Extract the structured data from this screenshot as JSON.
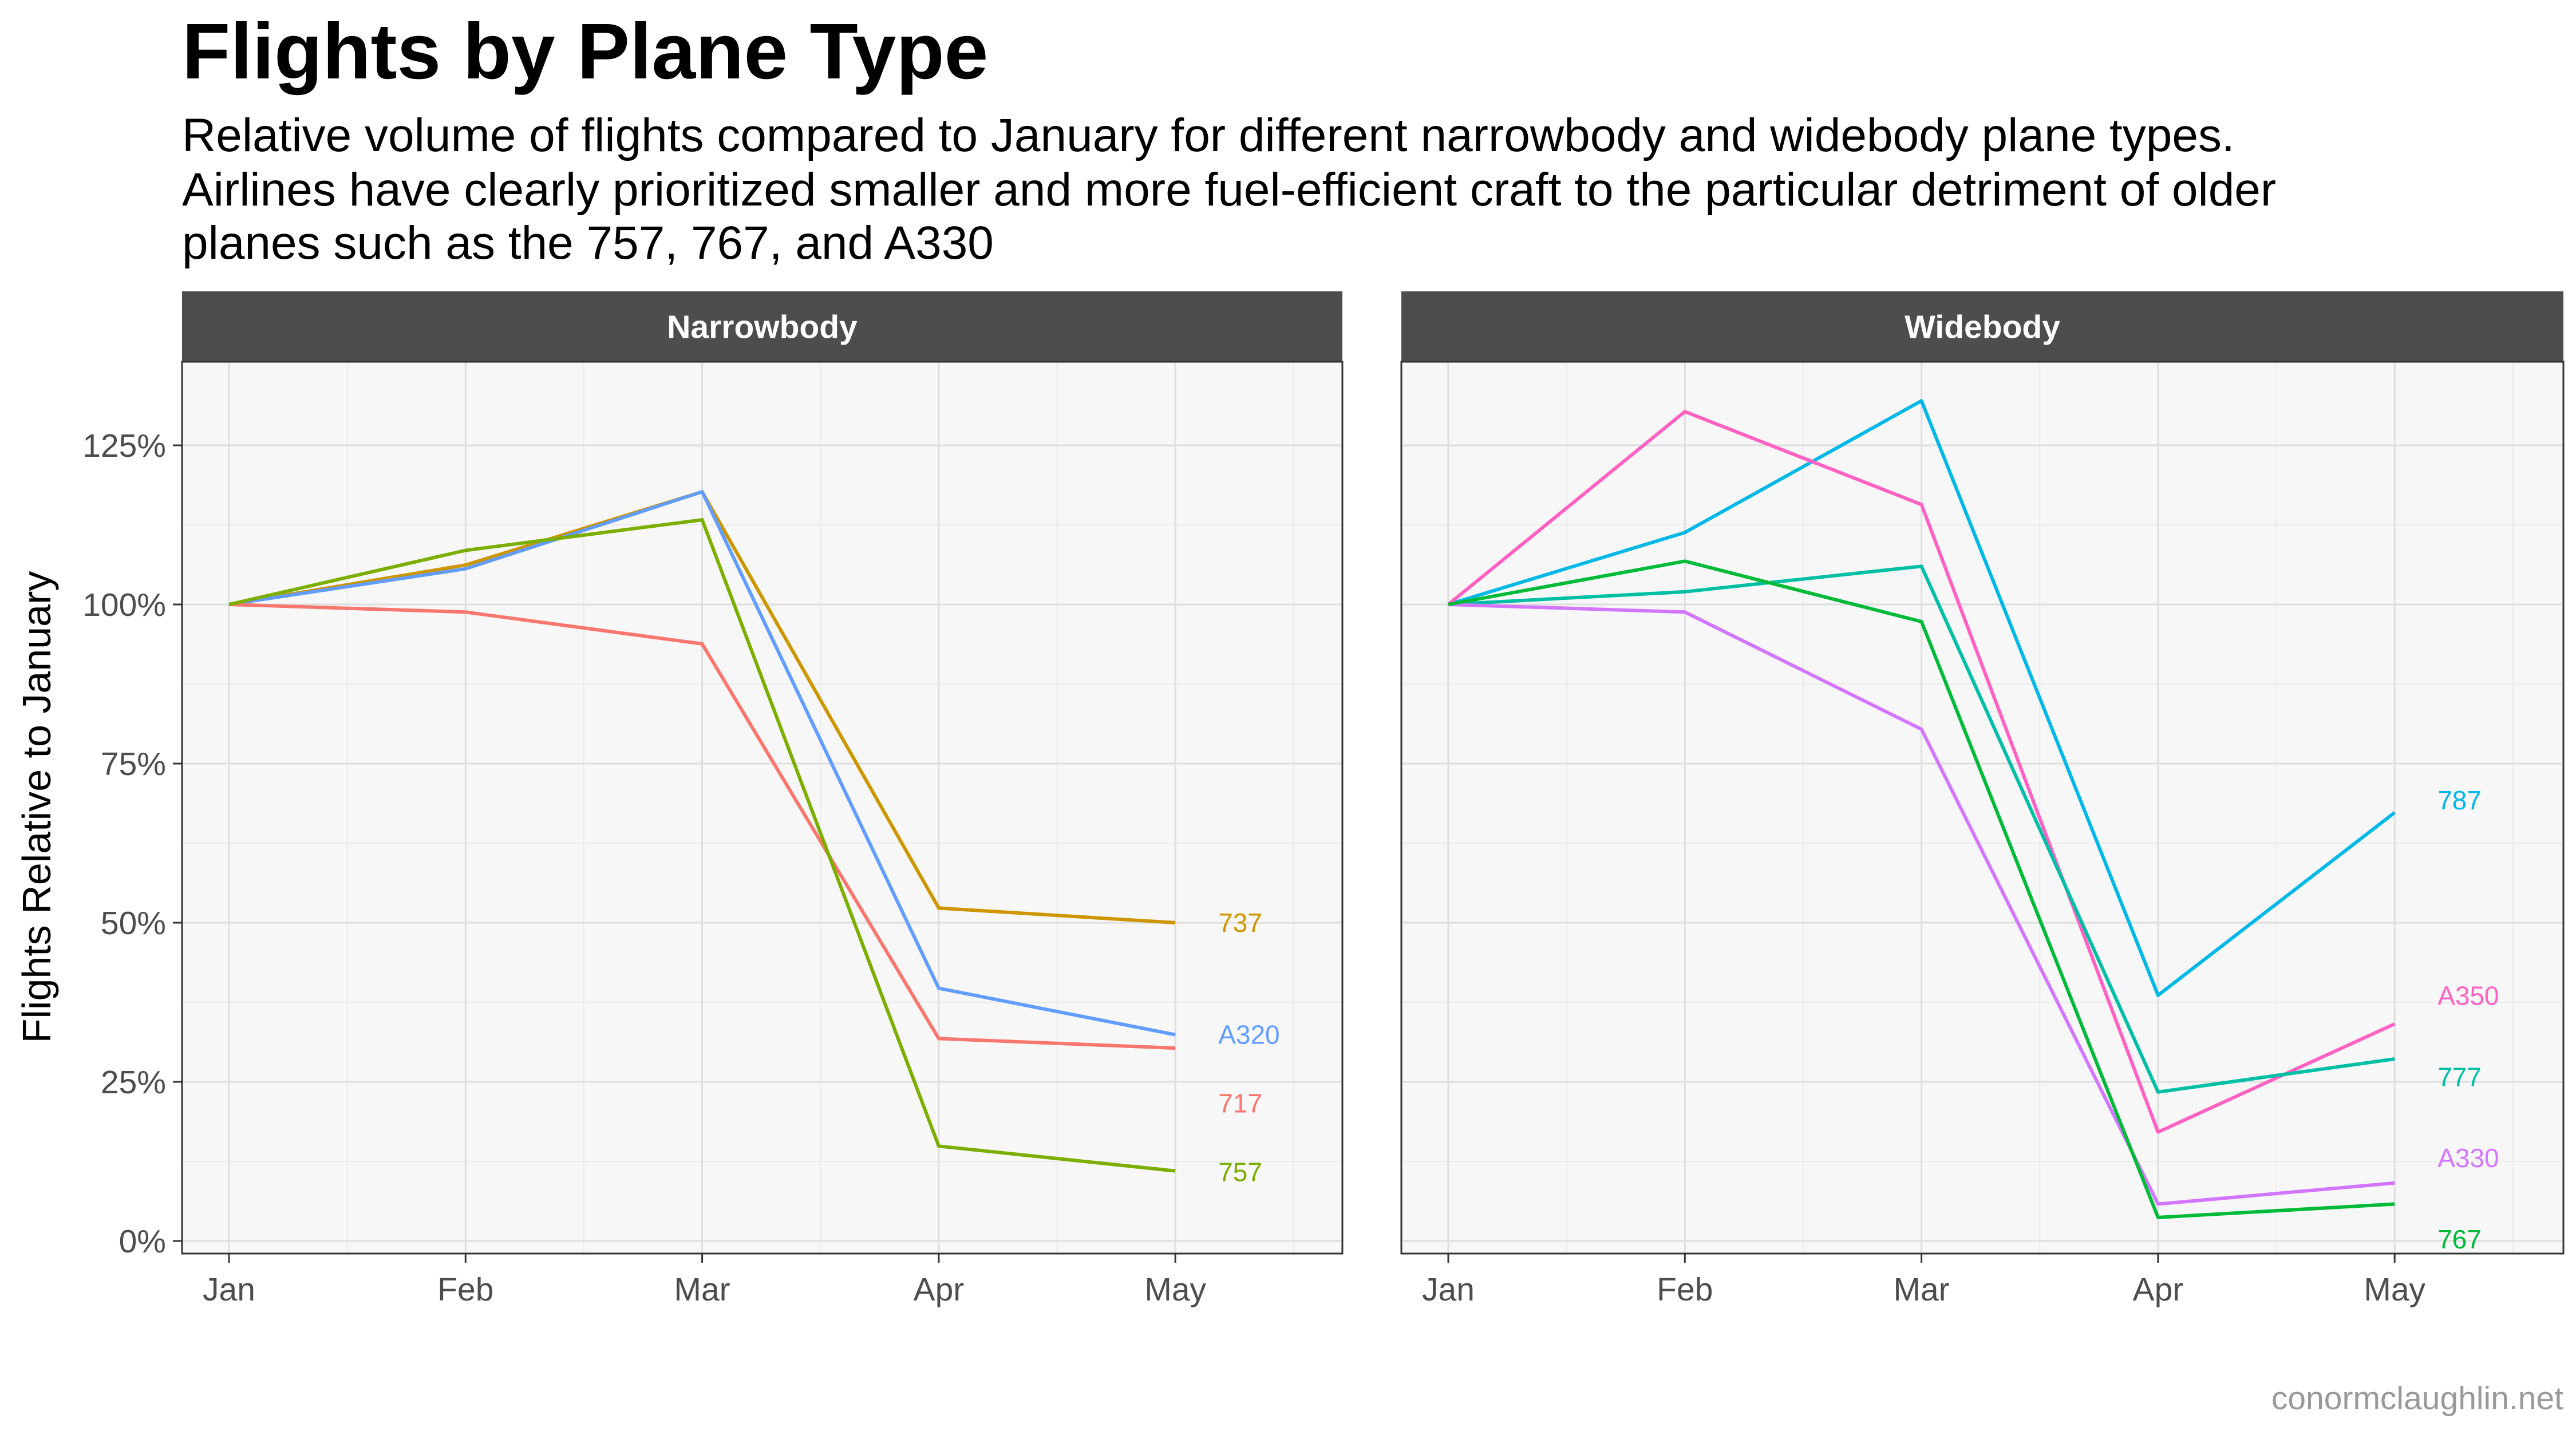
{
  "chart_data": {
    "type": "line",
    "title": "Flights by Plane Type",
    "subtitle": [
      "Relative volume of flights compared to January for different narrowbody and widebody plane types.",
      "Airlines have clearly prioritized smaller and more fuel-efficient craft to the particular detriment of older",
      "planes such as the 757, 767, and A330"
    ],
    "ylabel": "Flights Relative to January",
    "caption": "conormclaughlin.net",
    "x": [
      "Jan",
      "Feb",
      "Mar",
      "Apr",
      "May"
    ],
    "ylim": [
      0,
      1.4
    ],
    "yticks": [
      0,
      0.25,
      0.5,
      0.75,
      1.0,
      1.25
    ],
    "ytick_labels": [
      "0%",
      "25%",
      "50%",
      "75%",
      "100%",
      "125%"
    ],
    "grid": true,
    "legend": "direct labels at line ends",
    "panels": [
      {
        "name": "Narrowbody",
        "series": [
          {
            "name": "737",
            "color": "#cd9600",
            "values": [
              1.0,
              1.062,
              1.177,
              0.523,
              0.5
            ]
          },
          {
            "name": "A320",
            "color": "#619cff",
            "values": [
              1.0,
              1.056,
              1.177,
              0.397,
              0.324
            ]
          },
          {
            "name": "717",
            "color": "#f8766d",
            "values": [
              1.0,
              0.988,
              0.938,
              0.318,
              0.303
            ]
          },
          {
            "name": "757",
            "color": "#7cae00",
            "values": [
              1.0,
              1.085,
              1.133,
              0.149,
              0.11
            ]
          }
        ]
      },
      {
        "name": "Widebody",
        "series": [
          {
            "name": "787",
            "color": "#00b8e7",
            "values": [
              1.0,
              1.113,
              1.32,
              0.386,
              0.673
            ]
          },
          {
            "name": "A350",
            "color": "#ff61c3",
            "values": [
              1.0,
              1.303,
              1.157,
              0.171,
              0.341
            ]
          },
          {
            "name": "777",
            "color": "#00bfa5",
            "values": [
              1.0,
              1.02,
              1.06,
              0.234,
              0.286
            ]
          },
          {
            "name": "A330",
            "color": "#d376ff",
            "values": [
              1.0,
              0.988,
              0.804,
              0.058,
              0.091
            ]
          },
          {
            "name": "767",
            "color": "#00ba38",
            "values": [
              1.0,
              1.068,
              0.973,
              0.037,
              0.058
            ]
          }
        ]
      }
    ]
  }
}
